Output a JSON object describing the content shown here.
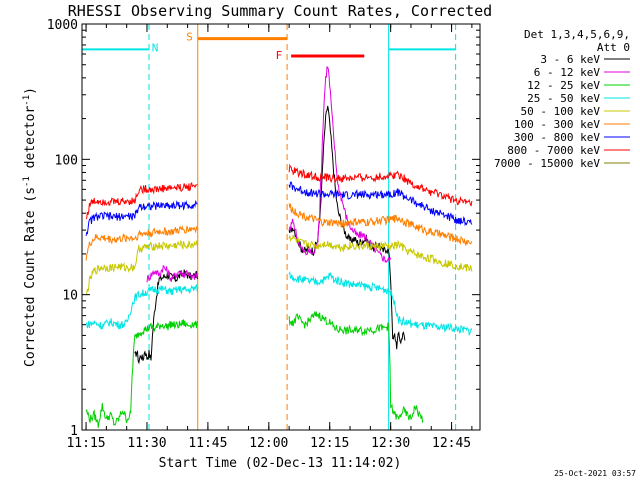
{
  "chart_data": {
    "type": "line",
    "title": "RHESSI Observing Summary Count Rates, Corrected",
    "xlabel": "Start Time (02-Dec-13 11:14:02)",
    "ylabel": "Corrected Count Rate (s",
    "ylabel_sup1": "-1",
    "ylabel_mid": " detector",
    "ylabel_sup2": "-1",
    "ylabel_end": ")",
    "yscale": "log",
    "ylim": [
      1,
      1000
    ],
    "xlim_minutes": [
      0,
      98
    ],
    "x_ticks": [
      {
        "label": "11:15",
        "value": 1
      },
      {
        "label": "11:30",
        "value": 16
      },
      {
        "label": "11:45",
        "value": 31
      },
      {
        "label": "12:00",
        "value": 46
      },
      {
        "label": "12:15",
        "value": 61
      },
      {
        "label": "12:30",
        "value": 76
      },
      {
        "label": "12:45",
        "value": 91
      }
    ],
    "y_ticks": [
      {
        "label": "1",
        "value": 1
      },
      {
        "label": "10",
        "value": 10
      },
      {
        "label": "100",
        "value": 100
      },
      {
        "label": "1000",
        "value": 1000
      }
    ],
    "legend_header": [
      "Det 1,3,4,5,6,9,",
      "Att 0"
    ],
    "timestamp": "25-Oct-2021 03:57",
    "gaps": [
      [
        28.5,
        50.5
      ]
    ],
    "annotations": [
      {
        "label": "N",
        "type": "night",
        "start": 16.5,
        "end": 16.5,
        "color": "#00e5e5",
        "label_at": 18
      },
      {
        "label": "S",
        "type": "saa",
        "start": 28.5,
        "end": 50.5,
        "color": "#ff7f00",
        "label_at": 26.5
      },
      {
        "label": "F",
        "type": "flare",
        "start": 51.5,
        "end": 69.5,
        "color": "#ff0000",
        "label_at": 48.5
      }
    ],
    "night_marks": [
      {
        "x": 0,
        "x2": 16.5
      },
      {
        "x": 75.5,
        "x2": 92
      }
    ],
    "series": [
      {
        "name": "3 - 6 keV",
        "color": "#000000",
        "times": [
          13,
          13.5,
          14,
          14.5,
          15,
          15.5,
          16,
          16.5,
          17,
          19,
          21,
          23,
          25,
          27,
          28,
          28.4,
          51,
          52,
          53,
          54,
          55,
          56,
          57,
          58,
          58.5,
          59,
          59.5,
          60,
          60.5,
          61,
          61.5,
          62,
          62.5,
          63,
          64,
          65,
          66,
          67,
          68,
          69,
          70,
          71,
          72,
          73,
          74,
          75,
          75.5,
          76.5,
          77,
          77.5,
          78,
          78.5,
          79,
          79.5
        ],
        "values": [
          3.5,
          3.8,
          3.2,
          3.6,
          3.3,
          3.9,
          3.4,
          3.7,
          3.3,
          13,
          14,
          13,
          14.5,
          13.5,
          14,
          14,
          28,
          32,
          26,
          22,
          21,
          22,
          21,
          25,
          35,
          60,
          120,
          200,
          250,
          180,
          120,
          80,
          55,
          42,
          33,
          28,
          25,
          26,
          24,
          25,
          26,
          23,
          22,
          24,
          21,
          22,
          21,
          4.5,
          5,
          4.2,
          5.2,
          4.4,
          5.3,
          4.6
        ]
      },
      {
        "name": "6 - 12 keV",
        "color": "#e000e0",
        "times": [
          16,
          17,
          18,
          19,
          20,
          21,
          22,
          23,
          24,
          25,
          26,
          27,
          28,
          28.4,
          51,
          52,
          53,
          54,
          55,
          56,
          57,
          58,
          58.5,
          59,
          59.5,
          60,
          60.5,
          61,
          61.5,
          62,
          62.5,
          63,
          64,
          65,
          66,
          67,
          68,
          69,
          70,
          71,
          72,
          73,
          74,
          75,
          76
        ],
        "values": [
          13,
          14,
          15,
          14,
          16,
          15,
          13,
          14,
          15,
          14,
          15,
          13,
          14,
          14,
          30,
          35,
          26,
          22,
          20,
          21,
          20,
          24,
          40,
          90,
          220,
          400,
          500,
          350,
          220,
          140,
          95,
          65,
          50,
          38,
          32,
          29,
          27,
          28,
          26,
          24,
          22,
          20,
          19,
          18,
          18
        ]
      },
      {
        "name": "12 - 25 keV",
        "color": "#00d000",
        "times": [
          1,
          2,
          3,
          4,
          5,
          6,
          7,
          8,
          9,
          10,
          11,
          12,
          13,
          14,
          15,
          16,
          17,
          18,
          19,
          20,
          21,
          22,
          23,
          24,
          25,
          26,
          27,
          28,
          28.4,
          51,
          52,
          53,
          54,
          55,
          56,
          57,
          58,
          59,
          60,
          61,
          62,
          63,
          64,
          65,
          66,
          67,
          68,
          69,
          70,
          71,
          72,
          73,
          74,
          75,
          75.5,
          76,
          77,
          78,
          79,
          80,
          81,
          82,
          83,
          84
        ],
        "values": [
          1.4,
          1.2,
          1.3,
          1.1,
          1.5,
          1.2,
          1.3,
          1.1,
          1.2,
          1.4,
          1.2,
          1.3,
          4.8,
          5.2,
          5.5,
          5.6,
          5.8,
          5.6,
          5.9,
          6.0,
          5.8,
          6.1,
          5.9,
          6.0,
          6.2,
          5.9,
          6.1,
          6.0,
          6.0,
          6.5,
          6.2,
          6.8,
          6.3,
          6.0,
          6.5,
          6.9,
          7.2,
          6.8,
          6.5,
          6.2,
          5.8,
          5.5,
          5.6,
          5.4,
          5.5,
          5.3,
          5.6,
          5.4,
          5.5,
          5.6,
          5.5,
          5.7,
          5.6,
          5.8,
          5.8,
          1.5,
          1.3,
          1.2,
          1.4,
          1.3,
          1.2,
          1.5,
          1.3,
          1.2
        ]
      },
      {
        "name": "25 - 50 keV",
        "color": "#00e5e5",
        "times": [
          1,
          3,
          5,
          7,
          9,
          11,
          13,
          14,
          16,
          18,
          20,
          22,
          24,
          26,
          28,
          28.4,
          51,
          52,
          54,
          56,
          58,
          60,
          61,
          62,
          64,
          66,
          68,
          70,
          72,
          74,
          75.5,
          76,
          78,
          80,
          82,
          84,
          86,
          88,
          90,
          92,
          94,
          96
        ],
        "values": [
          6.0,
          6.2,
          5.9,
          6.3,
          6.0,
          6.1,
          9.5,
          10,
          10.5,
          11,
          11,
          10.5,
          11,
          10.8,
          11.2,
          11.2,
          14,
          13.5,
          13,
          12.5,
          12.5,
          13,
          14,
          13,
          12.5,
          12,
          11.8,
          11.5,
          11.3,
          11,
          10.8,
          10.5,
          6.5,
          6.2,
          6.0,
          5.9,
          5.8,
          5.7,
          5.8,
          5.6,
          5.5,
          5.4
        ]
      },
      {
        "name": "50 - 100 keV",
        "color": "#c8c800",
        "times": [
          1,
          2,
          3,
          4,
          5,
          6,
          7,
          8,
          9,
          10,
          11,
          12,
          13,
          14,
          16,
          18,
          20,
          22,
          24,
          26,
          28,
          28.4,
          51,
          52,
          53,
          54,
          56,
          58,
          60,
          62,
          64,
          66,
          68,
          70,
          72,
          74,
          76,
          78,
          80,
          82,
          84,
          86,
          88,
          90,
          92,
          94,
          96
        ],
        "values": [
          9.5,
          13,
          15,
          15.5,
          16,
          16,
          15.8,
          16,
          16.2,
          16,
          15.8,
          16,
          16,
          22,
          22.5,
          23,
          23,
          22.8,
          23.5,
          23,
          24,
          24,
          27,
          26,
          25,
          24,
          23.5,
          23,
          24,
          23,
          22.5,
          23,
          22.8,
          23,
          22.5,
          23,
          22.5,
          23.5,
          21,
          20,
          19,
          18.5,
          17.5,
          17,
          16.5,
          16,
          15.5
        ]
      },
      {
        "name": "100 - 300 keV",
        "color": "#ff7f00",
        "times": [
          1,
          2,
          3,
          4,
          6,
          8,
          10,
          12,
          13,
          14,
          16,
          18,
          20,
          22,
          24,
          26,
          28,
          28.4,
          51,
          52,
          54,
          56,
          58,
          60,
          62,
          64,
          66,
          68,
          70,
          72,
          74,
          76,
          78,
          80,
          82,
          84,
          86,
          88,
          90,
          92,
          94,
          96
        ],
        "values": [
          19,
          24,
          26,
          26.5,
          26,
          25.5,
          26,
          26.5,
          26,
          28,
          28.5,
          29,
          29.5,
          29,
          30,
          30.5,
          31,
          31,
          45,
          42,
          39,
          37,
          35,
          34,
          34,
          33.5,
          34,
          34.5,
          34,
          35,
          35.5,
          36,
          37,
          34,
          32,
          30.5,
          29,
          28,
          27,
          26,
          25,
          24
        ]
      },
      {
        "name": "300 - 800 keV",
        "color": "#0000ff",
        "times": [
          1,
          2,
          3,
          4,
          6,
          8,
          10,
          12,
          13,
          14,
          16,
          18,
          20,
          22,
          24,
          26,
          28,
          28.4,
          51,
          52,
          54,
          56,
          58,
          60,
          62,
          64,
          66,
          68,
          70,
          72,
          74,
          76,
          78,
          80,
          82,
          84,
          86,
          88,
          90,
          92,
          94,
          96
        ],
        "values": [
          28,
          35,
          37,
          38,
          38,
          37.5,
          38,
          38,
          37.5,
          45,
          45.5,
          45,
          46,
          45.5,
          46,
          45.5,
          47,
          47,
          65,
          62,
          59,
          57,
          56,
          55,
          55,
          54.5,
          54,
          55,
          54.5,
          55,
          55.5,
          56,
          57,
          52,
          48,
          45,
          42,
          40,
          38,
          36,
          35,
          34
        ]
      },
      {
        "name": "800 - 7000 keV",
        "color": "#ff0000",
        "times": [
          1,
          2,
          3,
          4,
          6,
          8,
          10,
          12,
          13,
          14,
          16,
          18,
          20,
          22,
          24,
          26,
          28,
          28.4,
          51,
          52,
          54,
          56,
          58,
          60,
          62,
          64,
          66,
          68,
          70,
          72,
          74,
          76,
          78,
          80,
          82,
          84,
          86,
          88,
          90,
          92,
          94,
          96
        ],
        "values": [
          36,
          47,
          49,
          49.5,
          49,
          48.5,
          49,
          49.5,
          49,
          60,
          60.5,
          60,
          61,
          61.5,
          62,
          62.5,
          65,
          65,
          85,
          82,
          79,
          76,
          74,
          73,
          72.5,
          72,
          72.5,
          73,
          73.5,
          74,
          74.5,
          76,
          78,
          70,
          64,
          60,
          57,
          55,
          52,
          50,
          48,
          47
        ]
      },
      {
        "name": "7000 - 15000 keV",
        "color": "#808000",
        "times": [],
        "values": []
      }
    ]
  }
}
